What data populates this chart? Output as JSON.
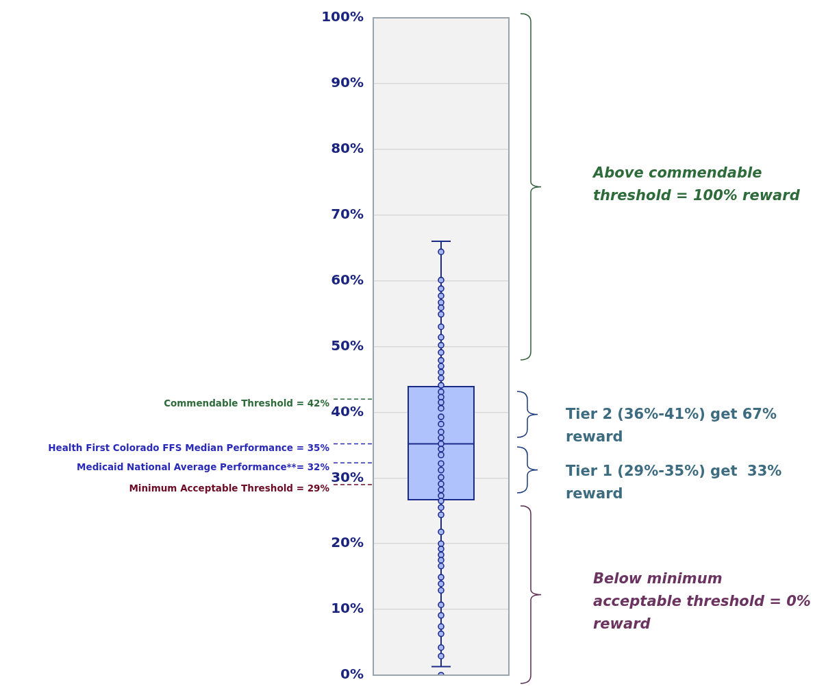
{
  "chart_data": {
    "type": "box",
    "categories": [
      null
    ],
    "color": "#b0c2fc",
    "boxes": [
      {
        "low": 1.3,
        "q1": 26.7,
        "median": 35.2,
        "q3": 43.9,
        "high": 66
      }
    ],
    "series": [
      {
        "type": "scatter",
        "color": "#a8b8f4",
        "marker": "circle",
        "x": [
          null,
          null,
          null,
          null,
          null,
          null,
          null,
          null,
          null,
          null,
          null,
          null,
          null,
          null,
          null,
          null,
          null,
          null,
          null,
          null,
          null,
          null,
          null,
          null,
          null,
          null,
          null,
          null,
          null,
          null,
          null,
          null,
          null,
          null,
          null,
          null,
          null,
          null,
          null,
          null,
          null,
          null,
          null,
          null,
          null,
          null,
          null,
          null,
          null,
          null,
          null,
          null
        ],
        "values": [
          64.4,
          60.1,
          58.8,
          57.7,
          56.7,
          55.9,
          54.9,
          53.0,
          51.4,
          50.2,
          49.1,
          47.9,
          47.0,
          46.1,
          45.2,
          44.1,
          43.1,
          42.3,
          41.5,
          40.6,
          39.3,
          38.2,
          37.0,
          36.1,
          35.2,
          34.4,
          33.5,
          32.2,
          31.2,
          30.1,
          29.1,
          28.2,
          27.3,
          26.5,
          25.5,
          24.4,
          21.8,
          20.0,
          19.2,
          18.3,
          17.5,
          16.6,
          14.9,
          13.9,
          12.9,
          10.7,
          9.1,
          7.4,
          6.3,
          4.2,
          2.9,
          0
        ]
      }
    ],
    "ylim": [
      0,
      100
    ],
    "yticks": [
      {
        "value": 0,
        "label": "0%"
      },
      {
        "value": 10,
        "label": "10%"
      },
      {
        "value": 20,
        "label": "20%"
      },
      {
        "value": 30,
        "label": "30%"
      },
      {
        "value": 40,
        "label": "40%"
      },
      {
        "value": 50,
        "label": "50%"
      },
      {
        "value": 60,
        "label": "60%"
      },
      {
        "value": 70,
        "label": "70%"
      },
      {
        "value": 80,
        "label": "80%"
      },
      {
        "value": 90,
        "label": "90%"
      },
      {
        "value": 100,
        "label": "100%"
      }
    ],
    "grid": "y",
    "legend": false,
    "ref_lines": [
      {
        "axis": "y",
        "value": 42,
        "label": "Commendable Threshold = 42%",
        "color": "#2e6b3a",
        "line_style": "dashed"
      },
      {
        "axis": "y",
        "value": 35.2,
        "label": "Health First Colorado FFS Median Performance = 35%",
        "color": "#2a2ab8",
        "line_style": "dashed"
      },
      {
        "axis": "y",
        "value": 32.3,
        "label": "Medicaid National Average Performance**= 32%",
        "color": "#2a2ab8",
        "line_style": "dashed"
      },
      {
        "axis": "y",
        "value": 29,
        "label": "Minimum Acceptable Threshold = 29%",
        "color": "#6b0a24",
        "line_style": "dashed"
      }
    ],
    "annotations": [
      "Above commendable threshold = 100% reward",
      "Tier 2 (36%-41%) get 67% reward",
      "Tier 1 (29%-35%) get  33% reward",
      "Below minimum acceptable threshold = 0% reward"
    ]
  }
}
